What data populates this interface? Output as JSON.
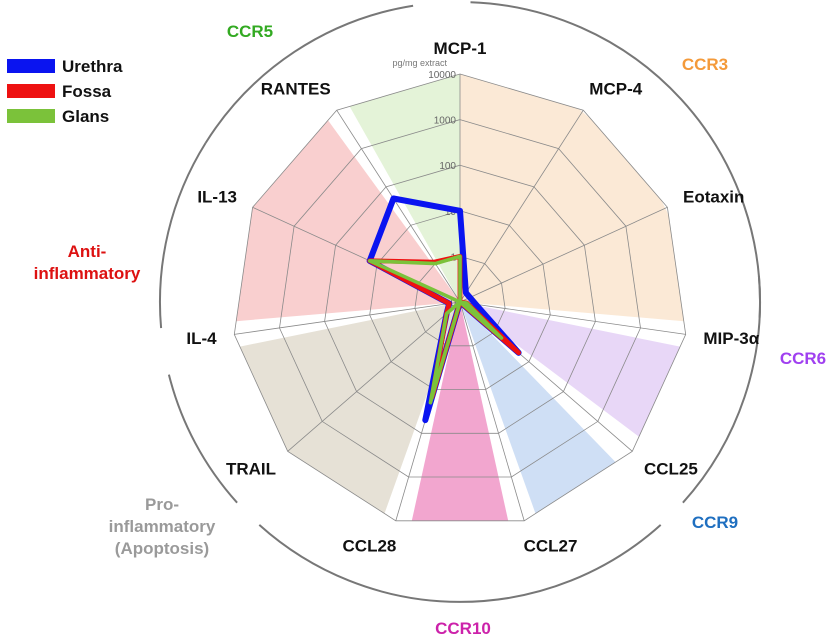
{
  "chart_data": {
    "type": "radar",
    "unit_label": "pg/mg extract",
    "scale": "log10",
    "rings": [
      "0",
      "1",
      "10",
      "100",
      "1000",
      "10000"
    ],
    "axes": [
      "MCP-1",
      "MCP-4",
      "Eotaxin",
      "MIP-3α",
      "CCL25",
      "CCL27",
      "CCL28",
      "TRAIL",
      "IL-4",
      "IL-13",
      "RANTES"
    ],
    "series": [
      {
        "name": "Urethra",
        "color": "#0a14f0",
        "values": [
          10,
          0.3,
          0.3,
          0.5,
          5,
          0.02,
          50,
          0.6,
          0.3,
          15,
          50
        ]
      },
      {
        "name": "Fossa",
        "color": "#ee1111",
        "values": [
          1,
          0.1,
          0.1,
          0.2,
          5,
          0.02,
          15,
          0.6,
          0.3,
          15,
          1.1
        ]
      },
      {
        "name": "Glans",
        "color": "#7bc23a",
        "values": [
          1,
          0.02,
          0.02,
          0.2,
          1.6,
          0.02,
          20,
          0.6,
          0.1,
          15,
          1
        ]
      }
    ],
    "groups": [
      {
        "label": "CCR5",
        "color": "#33aa22",
        "fill": "#e4f3d8"
      },
      {
        "label": "CCR3",
        "color": "#f49a3a",
        "fill": "#fbe9d6"
      },
      {
        "label": "CCR6",
        "color": "#a040f0",
        "fill": "#e8d7f7"
      },
      {
        "label": "CCR9",
        "color": "#1f6fc0",
        "fill": "#cfdff5"
      },
      {
        "label": "CCR10",
        "color": "#cc22aa",
        "fill": "#f2a6cf"
      },
      {
        "label": "Pro-\ninflammatory\n(Apoptosis)",
        "color": "#9a9a9a",
        "fill": "#e6e1d6"
      },
      {
        "label": "Anti-\ninflammatory",
        "color": "#dd1111",
        "fill": "#f9cfcf"
      }
    ],
    "legend_position": "top-left"
  }
}
